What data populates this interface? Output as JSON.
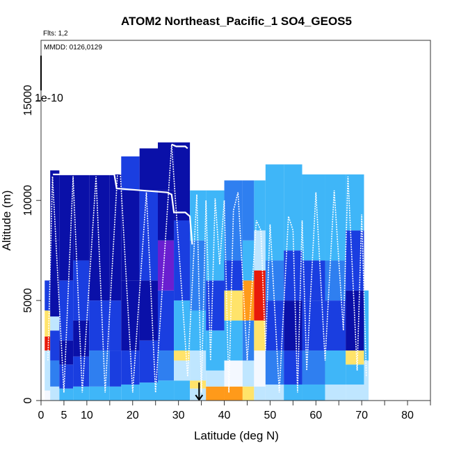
{
  "chart_data": {
    "type": "heatmap",
    "title": "ATOM2 Northeast_Pacific_1 SO4_GEOS5",
    "flights_label": "Flts: 1,2",
    "dates_label": "MMDD: 0126,0129",
    "scale_label": "1e-10",
    "xlabel": "Latitude (deg N)",
    "ylabel": "Altitude (m)",
    "xlim": [
      0,
      85
    ],
    "ylim": [
      0,
      18000
    ],
    "xticks": [
      0,
      5,
      10,
      20,
      30,
      40,
      50,
      60,
      70,
      80
    ],
    "yticks": [
      0,
      5000,
      10000,
      15000
    ],
    "colors": {
      "darkblue": "#0a10a8",
      "blue": "#1a3ee0",
      "midblue": "#2f7ff0",
      "lightblue": "#3fb6f8",
      "paleblue": "#bfe6ff",
      "white": "#f4f8ff",
      "yellow": "#ffe36a",
      "orange": "#ff9a1a",
      "red": "#e81a0a",
      "purple": "#6a1fd0",
      "track": "#ffffff"
    },
    "columns": [
      {
        "x0": 0.8,
        "x1": 2.0,
        "top": 6000,
        "bands": [
          [
            0,
            500,
            "white"
          ],
          [
            500,
            2500,
            "paleblue"
          ],
          [
            2500,
            3200,
            "red"
          ],
          [
            3200,
            4500,
            "yellow"
          ],
          [
            4500,
            6000,
            "blue"
          ]
        ]
      },
      {
        "x0": 2.0,
        "x1": 4.0,
        "top": 11500,
        "bands": [
          [
            0,
            700,
            "paleblue"
          ],
          [
            700,
            2000,
            "midblue"
          ],
          [
            2000,
            3500,
            "blue"
          ],
          [
            3500,
            4200,
            "paleblue"
          ],
          [
            4200,
            8000,
            "darkblue"
          ],
          [
            8000,
            11500,
            "darkblue"
          ]
        ]
      },
      {
        "x0": 4.0,
        "x1": 7.0,
        "top": 11300,
        "bands": [
          [
            0,
            600,
            "lightblue"
          ],
          [
            600,
            1800,
            "blue"
          ],
          [
            1800,
            3000,
            "darkblue"
          ],
          [
            3000,
            6000,
            "blue"
          ],
          [
            6000,
            11300,
            "darkblue"
          ]
        ]
      },
      {
        "x0": 7.0,
        "x1": 10.5,
        "top": 11300,
        "bands": [
          [
            0,
            700,
            "lightblue"
          ],
          [
            700,
            2200,
            "blue"
          ],
          [
            2200,
            4000,
            "darkblue"
          ],
          [
            4000,
            7000,
            "blue"
          ],
          [
            7000,
            11300,
            "darkblue"
          ]
        ]
      },
      {
        "x0": 10.5,
        "x1": 15.0,
        "top": 11300,
        "bands": [
          [
            0,
            700,
            "lightblue"
          ],
          [
            700,
            2500,
            "midblue"
          ],
          [
            2500,
            5000,
            "blue"
          ],
          [
            5000,
            11300,
            "darkblue"
          ]
        ]
      },
      {
        "x0": 15.0,
        "x1": 17.5,
        "top": 11300,
        "bands": [
          [
            0,
            700,
            "lightblue"
          ],
          [
            700,
            2500,
            "blue"
          ],
          [
            2500,
            5000,
            "blue"
          ],
          [
            5000,
            11300,
            "darkblue"
          ]
        ]
      },
      {
        "x0": 17.5,
        "x1": 21.5,
        "top": 12200,
        "bands": [
          [
            0,
            800,
            "lightblue"
          ],
          [
            800,
            2500,
            "blue"
          ],
          [
            2500,
            6000,
            "darkblue"
          ],
          [
            6000,
            10500,
            "darkblue"
          ],
          [
            10500,
            12200,
            "blue"
          ]
        ]
      },
      {
        "x0": 21.5,
        "x1": 25.5,
        "top": 12600,
        "bands": [
          [
            0,
            900,
            "lightblue"
          ],
          [
            900,
            3000,
            "blue"
          ],
          [
            3000,
            6000,
            "darkblue"
          ],
          [
            6000,
            10500,
            "blue"
          ],
          [
            10500,
            12600,
            "darkblue"
          ]
        ]
      },
      {
        "x0": 25.5,
        "x1": 29.0,
        "top": 12900,
        "bands": [
          [
            0,
            1000,
            "lightblue"
          ],
          [
            1000,
            2500,
            "midblue"
          ],
          [
            2500,
            5500,
            "blue"
          ],
          [
            5500,
            8000,
            "purple"
          ],
          [
            8000,
            10500,
            "darkblue"
          ],
          [
            10500,
            12900,
            "darkblue"
          ]
        ]
      },
      {
        "x0": 29.0,
        "x1": 32.5,
        "top": 12900,
        "bands": [
          [
            0,
            1000,
            "lightblue"
          ],
          [
            1000,
            2000,
            "paleblue"
          ],
          [
            2000,
            2500,
            "yellow"
          ],
          [
            2500,
            5000,
            "lightblue"
          ],
          [
            5000,
            9000,
            "blue"
          ],
          [
            9000,
            12900,
            "darkblue"
          ]
        ]
      },
      {
        "x0": 32.5,
        "x1": 36.0,
        "top": 10500,
        "bands": [
          [
            0,
            600,
            "paleblue"
          ],
          [
            600,
            1000,
            "yellow"
          ],
          [
            1000,
            2500,
            "paleblue"
          ],
          [
            2500,
            4500,
            "lightblue"
          ],
          [
            4500,
            8000,
            "midblue"
          ],
          [
            8000,
            10500,
            "lightblue"
          ]
        ]
      },
      {
        "x0": 36.0,
        "x1": 40.0,
        "top": 10500,
        "bands": [
          [
            0,
            700,
            "orange"
          ],
          [
            700,
            1500,
            "paleblue"
          ],
          [
            1500,
            3500,
            "lightblue"
          ],
          [
            3500,
            6000,
            "blue"
          ],
          [
            6000,
            10500,
            "lightblue"
          ]
        ]
      },
      {
        "x0": 40.0,
        "x1": 44.0,
        "top": 11000,
        "bands": [
          [
            0,
            700,
            "orange"
          ],
          [
            700,
            2000,
            "white"
          ],
          [
            2000,
            4000,
            "lightblue"
          ],
          [
            4000,
            5500,
            "yellow"
          ],
          [
            5500,
            7000,
            "blue"
          ],
          [
            7000,
            11000,
            "midblue"
          ]
        ]
      },
      {
        "x0": 44.0,
        "x1": 46.5,
        "top": 11000,
        "bands": [
          [
            0,
            700,
            "yellow"
          ],
          [
            700,
            2000,
            "paleblue"
          ],
          [
            2000,
            4000,
            "midblue"
          ],
          [
            4000,
            6000,
            "orange"
          ],
          [
            6000,
            8000,
            "lightblue"
          ],
          [
            8000,
            11000,
            "midblue"
          ]
        ]
      },
      {
        "x0": 46.5,
        "x1": 49.0,
        "top": 11000,
        "bands": [
          [
            0,
            700,
            "paleblue"
          ],
          [
            700,
            2500,
            "white"
          ],
          [
            2500,
            4000,
            "yellow"
          ],
          [
            4000,
            6500,
            "red"
          ],
          [
            6500,
            8500,
            "paleblue"
          ],
          [
            8500,
            11000,
            "lightblue"
          ]
        ]
      },
      {
        "x0": 49.0,
        "x1": 53.0,
        "top": 11800,
        "bands": [
          [
            0,
            800,
            "paleblue"
          ],
          [
            800,
            2500,
            "midblue"
          ],
          [
            2500,
            5000,
            "blue"
          ],
          [
            5000,
            7000,
            "midblue"
          ],
          [
            7000,
            11800,
            "lightblue"
          ]
        ]
      },
      {
        "x0": 53.0,
        "x1": 57.0,
        "top": 11800,
        "bands": [
          [
            0,
            800,
            "lightblue"
          ],
          [
            800,
            2500,
            "blue"
          ],
          [
            2500,
            5000,
            "darkblue"
          ],
          [
            5000,
            7500,
            "blue"
          ],
          [
            7500,
            11800,
            "lightblue"
          ]
        ]
      },
      {
        "x0": 57.0,
        "x1": 62.0,
        "top": 11300,
        "bands": [
          [
            0,
            800,
            "lightblue"
          ],
          [
            800,
            2500,
            "midblue"
          ],
          [
            2500,
            5000,
            "blue"
          ],
          [
            5000,
            7000,
            "blue"
          ],
          [
            7000,
            11300,
            "lightblue"
          ]
        ]
      },
      {
        "x0": 62.0,
        "x1": 66.5,
        "top": 11300,
        "bands": [
          [
            0,
            800,
            "paleblue"
          ],
          [
            800,
            2500,
            "lightblue"
          ],
          [
            2500,
            5000,
            "blue"
          ],
          [
            5000,
            7000,
            "midblue"
          ],
          [
            7000,
            11300,
            "lightblue"
          ]
        ]
      },
      {
        "x0": 66.5,
        "x1": 70.5,
        "top": 11300,
        "bands": [
          [
            0,
            800,
            "paleblue"
          ],
          [
            800,
            1800,
            "lightblue"
          ],
          [
            1800,
            2500,
            "yellow"
          ],
          [
            2500,
            5500,
            "darkblue"
          ],
          [
            5500,
            8500,
            "blue"
          ],
          [
            8500,
            11300,
            "lightblue"
          ]
        ]
      },
      {
        "x0": 70.5,
        "x1": 71.5,
        "top": 5500,
        "bands": [
          [
            0,
            2000,
            "paleblue"
          ],
          [
            2000,
            5500,
            "lightblue"
          ]
        ]
      }
    ],
    "track_solid": [
      [
        2.6,
        11300
      ],
      [
        5,
        11300
      ],
      [
        10,
        11300
      ],
      [
        16,
        11300
      ],
      [
        16.5,
        10600
      ],
      [
        22,
        10500
      ],
      [
        27.5,
        10400
      ],
      [
        28.5,
        10300
      ],
      [
        29,
        9400
      ],
      [
        31.5,
        9400
      ],
      [
        32.5,
        9200
      ],
      [
        33,
        7800
      ]
    ],
    "track_solid2": [
      [
        28.5,
        12800
      ],
      [
        29.5,
        12700
      ],
      [
        31.5,
        12700
      ],
      [
        32,
        12600
      ]
    ],
    "track_dotted": [
      [
        1.5,
        2000
      ],
      [
        2.5,
        11200
      ],
      [
        5,
        400
      ],
      [
        7,
        11200
      ],
      [
        9,
        400
      ],
      [
        12,
        11200
      ],
      [
        14,
        400
      ],
      [
        17,
        12600
      ],
      [
        20,
        400
      ],
      [
        23,
        10400
      ],
      [
        25,
        400
      ],
      [
        28.5,
        12800
      ],
      [
        32,
        1200
      ],
      [
        34,
        10300
      ],
      [
        35,
        400
      ],
      [
        36,
        10000
      ],
      [
        37,
        2000
      ],
      [
        38,
        10100
      ],
      [
        39,
        6800
      ],
      [
        40,
        10000
      ],
      [
        41,
        400
      ],
      [
        42,
        9500
      ],
      [
        43,
        10400
      ],
      [
        45,
        2000
      ],
      [
        47,
        9000
      ],
      [
        48,
        8500
      ],
      [
        49,
        2500
      ],
      [
        50,
        8800
      ],
      [
        52,
        400
      ],
      [
        54,
        9200
      ],
      [
        55,
        8500
      ],
      [
        56,
        400
      ],
      [
        57,
        9000
      ],
      [
        58,
        1500
      ],
      [
        60,
        10400
      ],
      [
        62,
        2000
      ],
      [
        64,
        10500
      ],
      [
        66,
        3500
      ],
      [
        67,
        11200
      ],
      [
        69,
        1500
      ],
      [
        70,
        9300
      ],
      [
        71,
        1200
      ]
    ],
    "arrow": {
      "x": 34.5,
      "y_from": 900,
      "y_to": 0
    }
  }
}
